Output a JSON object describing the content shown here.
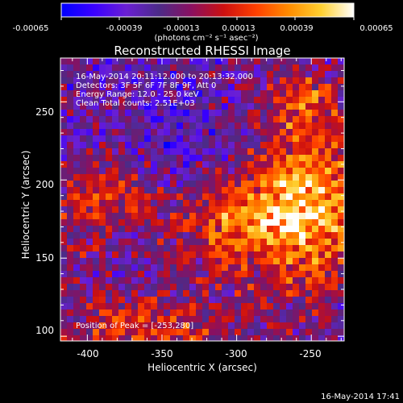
{
  "chart_data": {
    "type": "heatmap",
    "title": "Reconstructed RHESSI Image",
    "xlabel": "Heliocentric X (arcsec)",
    "ylabel": "Heliocentric Y (arcsec)",
    "xlim": [
      -418,
      -228
    ],
    "ylim": [
      97,
      278
    ],
    "x_ticks": [
      -400,
      -350,
      -300,
      -250
    ],
    "y_ticks": [
      100,
      150,
      200,
      250
    ],
    "colorbar": {
      "range": [
        -0.00065,
        0.00065
      ],
      "ticks": [
        "-0.00065",
        "-0.00039",
        "-0.00013",
        "0.00013",
        "0.00039",
        "0.00065"
      ],
      "unit_label": "(photons cm⁻² s⁻¹ asec⁻²)",
      "stops": [
        "#0000ff",
        "#3a00ff",
        "#6a1fd4",
        "#4c2b88",
        "#8a1060",
        "#cc1010",
        "#ff4000",
        "#ff8c00",
        "#ffd030",
        "#ffffff"
      ]
    },
    "annotations": [
      "16-May-2014 20:11:12.000 to 20:13:32.000",
      "Detectors: 3F 5F 6F 7F 8F 9F, Att 0",
      "Energy Range: 12.0 - 25.0 keV",
      "Clean     Total counts: 2.51E+03"
    ],
    "peak_label": "Position of Peak = [-253,280]",
    "peak_position": [
      -253,
      280
    ],
    "grid": false
  },
  "footer": {
    "timestamp": "16-May-2014 17:41"
  }
}
